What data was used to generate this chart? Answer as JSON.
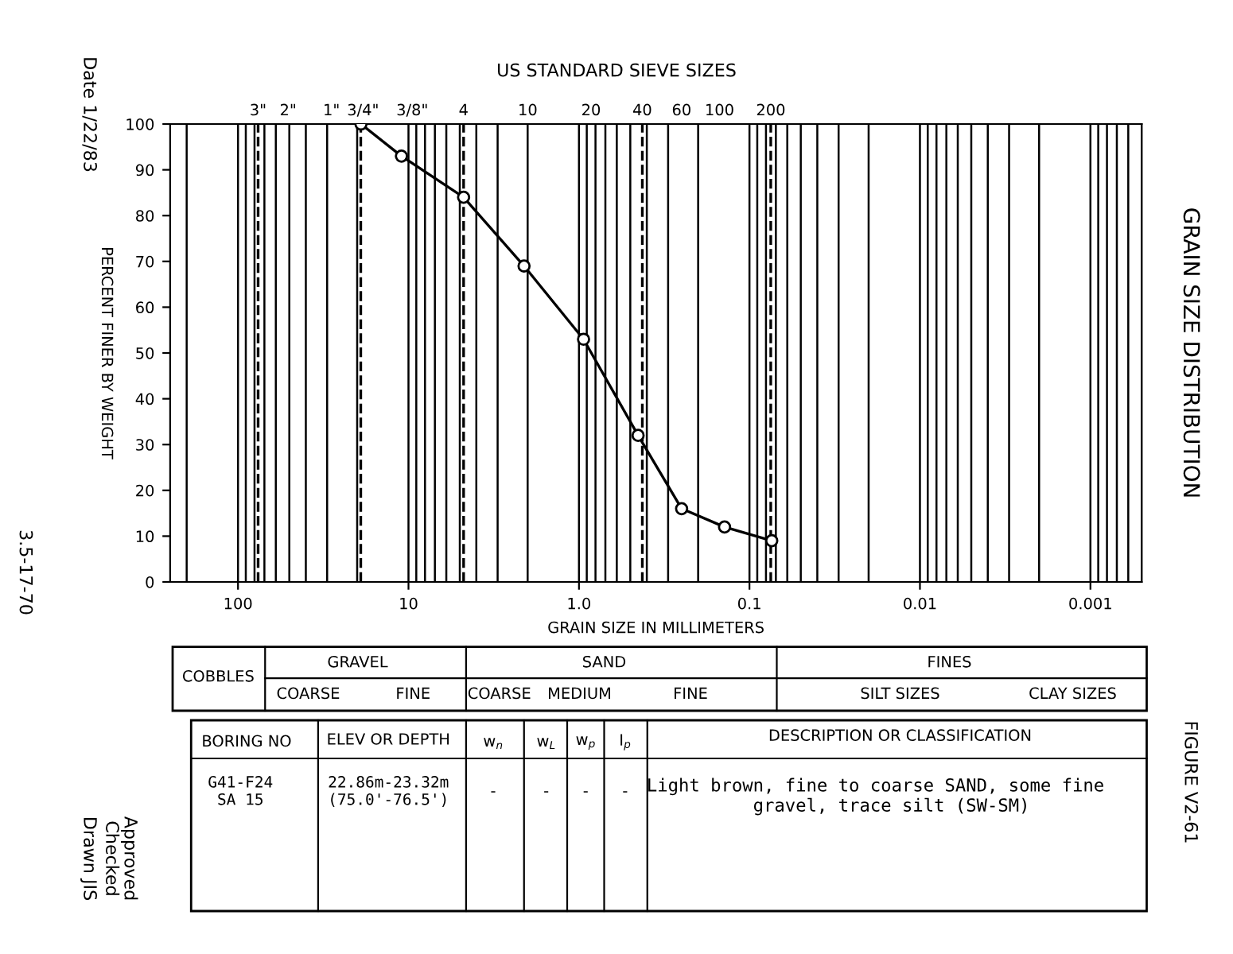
{
  "chart_data": {
    "type": "line",
    "title": "GRAIN SIZE DISTRIBUTION",
    "xlabel": "GRAIN SIZE IN MILLIMETERS",
    "ylabel": "PERCENT FINER BY WEIGHT",
    "x": [
      19,
      11,
      4.75,
      2.1,
      0.94,
      0.45,
      0.25,
      0.14,
      0.074
    ],
    "series": [
      {
        "color": "#000000",
        "values": [
          100,
          93,
          84,
          69,
          53,
          32,
          16,
          12,
          9
        ]
      }
    ],
    "marker": "circle",
    "line_style": "solid",
    "log": "x",
    "xlim": [
      250,
      0.0005
    ],
    "xticks": [
      100,
      10,
      {
        "value": 1,
        "label": "1.0"
      },
      0.1,
      0.01,
      0.001
    ],
    "ylim": [
      0,
      100
    ],
    "yticks": [
      0,
      10,
      20,
      30,
      40,
      50,
      60,
      70,
      80,
      90,
      100
    ],
    "grid": "x",
    "ref_lines": [
      {
        "axis": "x",
        "value": 76.2,
        "line_style": "dashed",
        "color": "#000000"
      },
      {
        "axis": "x",
        "value": 19.05,
        "line_style": "dashed",
        "color": "#000000"
      },
      {
        "axis": "x",
        "value": 4.75,
        "line_style": "dashed",
        "color": "#000000"
      },
      {
        "axis": "x",
        "value": 0.425,
        "line_style": "dashed",
        "color": "#000000"
      },
      {
        "axis": "x",
        "value": 0.075,
        "line_style": "dashed",
        "color": "#000000"
      }
    ],
    "annotations": [
      "COBBLES",
      "GRAVEL",
      "COARSE",
      "FINE",
      "SAND",
      "COARSE",
      "MEDIUM",
      "FINE",
      "FINES",
      "SILT SIZES",
      "CLAY SIZES",
      "BORING NO",
      "ELEV OR DEPTH",
      "w$_{n}$",
      "w$_{L}$",
      "w$_{p}$",
      "I$_{p}$",
      "DESCRIPTION OR CLASSIFICATION",
      "G41-F24\nSA 15",
      "22.86m-23.32m\n(75.0'-76.5')",
      "-",
      "-",
      "-",
      "-",
      "Light brown, fine to coarse SAND, some fine\n   gravel, trace silt (SW-SM)",
      "Date 1/22/83",
      "Drawn JIS",
      "Checked",
      "Approved",
      "FIGURE V2-61",
      "3.5-17-70",
      "US STANDARD SIEVE SIZES",
      "3\"",
      "2\"",
      "1\"",
      "3/4\"",
      "3/8\"",
      "4",
      "10",
      "20",
      "40",
      "60",
      "100",
      "200"
    ]
  }
}
